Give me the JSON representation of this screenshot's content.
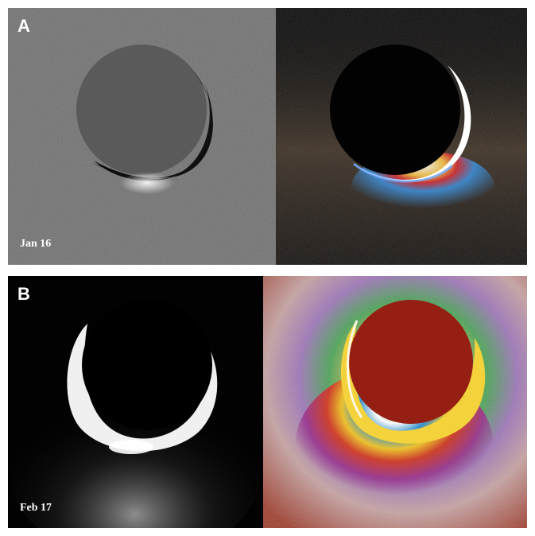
{
  "figure": {
    "row_a": {
      "label": "A",
      "date": "Jan 16"
    },
    "row_b": {
      "label": "B",
      "date": "Feb 17"
    }
  }
}
